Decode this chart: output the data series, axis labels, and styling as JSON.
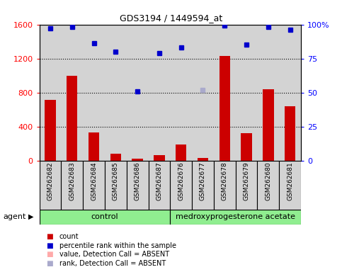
{
  "title": "GDS3194 / 1449594_at",
  "samples": [
    "GSM262682",
    "GSM262683",
    "GSM262684",
    "GSM262685",
    "GSM262686",
    "GSM262687",
    "GSM262676",
    "GSM262677",
    "GSM262678",
    "GSM262679",
    "GSM262680",
    "GSM262681"
  ],
  "count_values": [
    710,
    1000,
    330,
    80,
    20,
    65,
    185,
    30,
    1230,
    320,
    840,
    640
  ],
  "percentile_values": [
    97,
    98,
    86,
    80,
    51,
    79,
    83,
    null,
    99,
    85,
    98,
    96
  ],
  "absent_value_idx": null,
  "absent_rank_idx": 7,
  "absent_rank_val": 52,
  "control_count": 6,
  "control_label": "control",
  "treatment_label": "medroxyprogesterone acetate",
  "agent_label": "agent",
  "ylim_left": [
    0,
    1600
  ],
  "ylim_right": [
    0,
    100
  ],
  "yticks_left": [
    0,
    400,
    800,
    1200,
    1600
  ],
  "yticks_right": [
    0,
    25,
    50,
    75,
    100
  ],
  "bar_color": "#cc0000",
  "dot_color": "#0000cc",
  "absent_rank_color": "#aaaacc",
  "sample_box_color": "#d3d3d3",
  "control_bg": "#90ee90",
  "treatment_bg": "#90ee90",
  "legend_count_color": "#cc0000",
  "legend_dot_color": "#0000cc",
  "legend_absent_val_color": "#ffaaaa",
  "legend_absent_rank_color": "#aaaacc",
  "grid_yticks": [
    400,
    800,
    1200
  ]
}
